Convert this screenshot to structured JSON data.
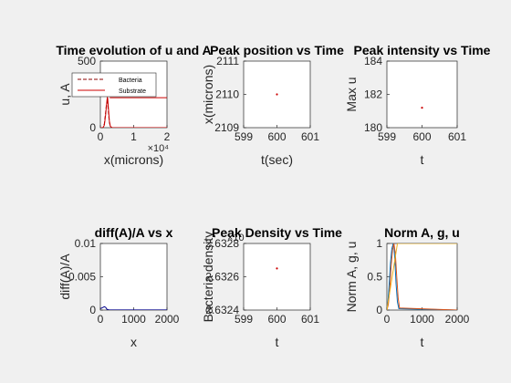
{
  "figure": {
    "background": "#f0f0f0",
    "axes_background": "#ffffff"
  },
  "colors": {
    "bacteria": "#8b0000",
    "substrate": "#cc0000",
    "marker": "#cc0000",
    "diff_line": "#00008b",
    "norm_A": "#0072bd",
    "norm_g": "#d95319",
    "norm_u": "#edb120"
  },
  "chart_data": [
    {
      "id": "p1",
      "type": "line",
      "title": "Time evolution of u and A",
      "xlabel": "x(microns)",
      "ylabel": "u, A",
      "xlim": [
        0,
        20000
      ],
      "ylim": [
        0,
        500
      ],
      "xticks": [
        0,
        10000,
        20000
      ],
      "xtick_labels": [
        "0",
        "1",
        "2"
      ],
      "x_exponent": "×10⁴",
      "yticks": [
        0,
        500
      ],
      "ytick_labels": [
        "0",
        "500"
      ],
      "legend": {
        "position": "top-right",
        "entries": [
          "Bacteria",
          "Substrate"
        ]
      },
      "series": [
        {
          "name": "Bacteria",
          "style": "dashed",
          "x": [
            0,
            800,
            1200,
            1600,
            1800,
            2000,
            2100,
            2200,
            2400,
            2700,
            3000,
            3500,
            20000
          ],
          "y": [
            0,
            0,
            30,
            120,
            170,
            190,
            195,
            180,
            120,
            40,
            8,
            0,
            0
          ]
        },
        {
          "name": "Substrate",
          "style": "solid",
          "x": [
            0,
            800,
            1200,
            1600,
            1800,
            2000,
            2100,
            2200,
            2400,
            2700,
            3000,
            3500,
            20000
          ],
          "y": [
            0,
            0,
            20,
            100,
            160,
            210,
            230,
            220,
            150,
            50,
            10,
            0,
            0
          ]
        }
      ],
      "extra_lines": [
        {
          "x": [
            2800,
            20000
          ],
          "y": [
            225,
            225
          ]
        }
      ]
    },
    {
      "id": "p2",
      "type": "scatter",
      "title": "Peak position vs Time",
      "xlabel": "t(sec)",
      "ylabel": "x(microns)",
      "xlim": [
        599,
        601
      ],
      "ylim": [
        2109,
        2111
      ],
      "xticks": [
        599,
        600,
        601
      ],
      "xtick_labels": [
        "599",
        "600",
        "601"
      ],
      "yticks": [
        2109,
        2110,
        2111
      ],
      "ytick_labels": [
        "2109",
        "2110",
        "2111"
      ],
      "points": [
        {
          "x": 600,
          "y": 2110
        }
      ]
    },
    {
      "id": "p3",
      "type": "scatter",
      "title": "Peak intensity vs Time",
      "xlabel": "t",
      "ylabel": "Max u",
      "xlim": [
        599,
        601
      ],
      "ylim": [
        180,
        184
      ],
      "xticks": [
        599,
        600,
        601
      ],
      "xtick_labels": [
        "599",
        "600",
        "601"
      ],
      "yticks": [
        180,
        182,
        184
      ],
      "ytick_labels": [
        "180",
        "182",
        "184"
      ],
      "points": [
        {
          "x": 600,
          "y": 181.2
        }
      ]
    },
    {
      "id": "p4",
      "type": "line",
      "title": "diff(A)/A vs x",
      "xlabel": "x",
      "ylabel": "diff(A)/A",
      "xlim": [
        0,
        2000
      ],
      "ylim": [
        0,
        0.01
      ],
      "xticks": [
        0,
        1000,
        2000
      ],
      "xtick_labels": [
        "0",
        "1000",
        "2000"
      ],
      "yticks": [
        0,
        0.005,
        0.01
      ],
      "ytick_labels": [
        "0",
        "0.005",
        "0.01"
      ],
      "series": [
        {
          "x": [
            0,
            40,
            80,
            120,
            160,
            200,
            260,
            2000
          ],
          "y": [
            0.0002,
            0.0003,
            0.0004,
            0.0005,
            0.0004,
            0.0001,
            2e-05,
            2e-05
          ]
        }
      ]
    },
    {
      "id": "p5",
      "type": "scatter",
      "title": "Peak Density vs Time",
      "xlabel": "t",
      "ylabel": "Bacteria density",
      "xlim": [
        599,
        601
      ],
      "ylim": [
        2.6324,
        2.6328
      ],
      "xticks": [
        599,
        600,
        601
      ],
      "xtick_labels": [
        "599",
        "600",
        "601"
      ],
      "yticks": [
        2.6324,
        2.6326,
        2.6328
      ],
      "ytick_labels": [
        "2.6324",
        "2.6326",
        "2.6328"
      ],
      "y_exponent": "×10",
      "points": [
        {
          "x": 600,
          "y": 2.63265
        }
      ]
    },
    {
      "id": "p6",
      "type": "line",
      "title": "Norm A, g, u",
      "xlabel": "t",
      "ylabel": "Norm A, g, u",
      "xlim": [
        0,
        2000
      ],
      "ylim": [
        0,
        1
      ],
      "xticks": [
        0,
        1000,
        2000
      ],
      "xtick_labels": [
        "0",
        "1000",
        "2000"
      ],
      "yticks": [
        0,
        0.5,
        1
      ],
      "ytick_labels": [
        "0",
        "0.5",
        "1"
      ],
      "series": [
        {
          "x": [
            0,
            30,
            60,
            100,
            140,
            180,
            200,
            230,
            260,
            300,
            340,
            2000
          ],
          "y": [
            0,
            0.12,
            0.35,
            0.7,
            0.92,
            1.0,
            0.96,
            0.72,
            0.4,
            0.12,
            0.02,
            0
          ]
        },
        {
          "x": [
            0,
            40,
            80,
            120,
            160,
            200,
            240,
            280,
            320,
            360,
            2000
          ],
          "y": [
            0,
            0.08,
            0.3,
            0.65,
            0.9,
            1.0,
            0.85,
            0.5,
            0.18,
            0.03,
            0
          ]
        },
        {
          "x": [
            0,
            300,
            2000
          ],
          "y": [
            0,
            1,
            1
          ]
        }
      ]
    }
  ]
}
